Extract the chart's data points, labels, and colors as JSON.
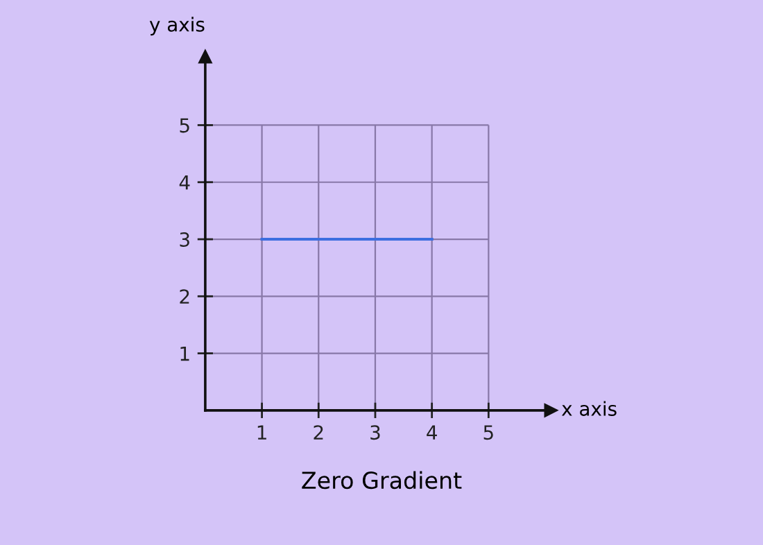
{
  "chart_data": {
    "type": "line",
    "title": "Zero Gradient",
    "xlabel": "x axis",
    "ylabel": "y axis",
    "x": [
      1,
      4
    ],
    "series": [
      {
        "color": "#3d6ee0",
        "values": [
          3,
          3
        ]
      }
    ],
    "xlim": [
      0,
      6.1
    ],
    "ylim": [
      0,
      6.2
    ],
    "xticks": [
      1,
      2,
      3,
      4,
      5
    ],
    "yticks": [
      1,
      2,
      3,
      4,
      5
    ],
    "grid": true,
    "legend": false,
    "marker": "none",
    "line_style": "solid"
  }
}
